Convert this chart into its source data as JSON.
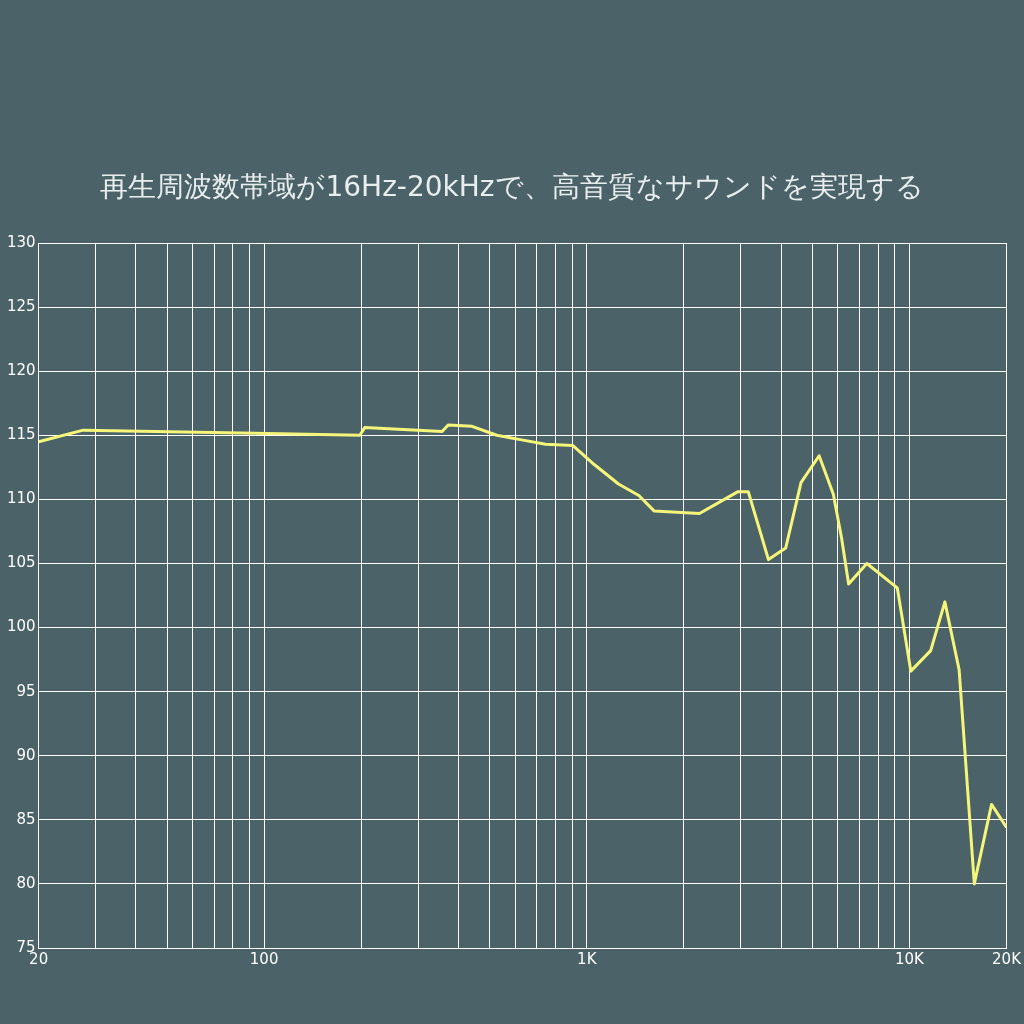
{
  "chart_data": {
    "type": "line",
    "title": "再生周波数帯域が16Hz-20kHzで、高音質なサウンドを実現する",
    "x": [
      20,
      27.5,
      198,
      205,
      356,
      372,
      441,
      526,
      610,
      745,
      906,
      1057,
      1254,
      1450,
      1616,
      2235,
      2943,
      3166,
      3657,
      4135,
      4613,
      5250,
      5810,
      6160,
      6480,
      7380,
      9170,
      10100,
      11640,
      12880,
      14260,
      15890,
      17970,
      20000
    ],
    "series": [
      {
        "color": "#f5f57a",
        "values": [
          114.5,
          115.4,
          115.0,
          115.6,
          115.3,
          115.8,
          115.7,
          115.0,
          114.7,
          114.3,
          114.2,
          112.7,
          111.2,
          110.3,
          109.1,
          108.9,
          110.6,
          110.6,
          105.3,
          106.2,
          111.3,
          113.4,
          110.4,
          107.0,
          103.4,
          105.0,
          103.1,
          96.6,
          98.2,
          102.0,
          96.7,
          80.0,
          86.2,
          84.4
        ]
      }
    ],
    "log": "x",
    "xlim": [
      20,
      20000
    ],
    "xticks": [
      20,
      {
        "value": 30,
        "label": null
      },
      {
        "value": 40,
        "label": null
      },
      {
        "value": 50,
        "label": null
      },
      {
        "value": 60,
        "label": null
      },
      {
        "value": 70,
        "label": null
      },
      {
        "value": 80,
        "label": null
      },
      {
        "value": 90,
        "label": null
      },
      100,
      {
        "value": 200,
        "label": null
      },
      {
        "value": 300,
        "label": null
      },
      {
        "value": 400,
        "label": null
      },
      {
        "value": 500,
        "label": null
      },
      {
        "value": 600,
        "label": null
      },
      {
        "value": 700,
        "label": null
      },
      {
        "value": 800,
        "label": null
      },
      {
        "value": 900,
        "label": null
      },
      {
        "value": 1000,
        "label": "1K"
      },
      {
        "value": 2000,
        "label": null
      },
      {
        "value": 3000,
        "label": null
      },
      {
        "value": 4000,
        "label": null
      },
      {
        "value": 5000,
        "label": null
      },
      {
        "value": 6000,
        "label": null
      },
      {
        "value": 7000,
        "label": null
      },
      {
        "value": 8000,
        "label": null
      },
      {
        "value": 9000,
        "label": null
      },
      {
        "value": 10000,
        "label": "10K"
      },
      {
        "value": 20000,
        "label": "20K"
      }
    ],
    "ylim": [
      75,
      130
    ],
    "yticks": [
      75,
      80,
      85,
      90,
      95,
      100,
      105,
      110,
      115,
      120,
      125,
      130
    ],
    "grid": true,
    "legend": false,
    "marker": "none",
    "line_style": "solid"
  }
}
